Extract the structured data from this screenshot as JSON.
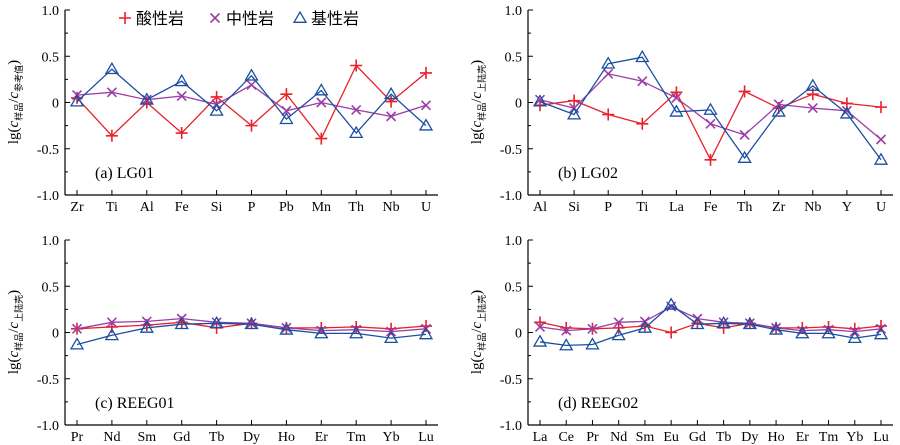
{
  "legend": [
    {
      "label": "酸性岩",
      "color": "#e8212a",
      "marker": "plus"
    },
    {
      "label": "中性岩",
      "color": "#9b3fa6",
      "marker": "cross"
    },
    {
      "label": "基性岩",
      "color": "#1a4fa0",
      "marker": "triangle"
    }
  ],
  "chart_data": [
    {
      "type": "line",
      "panel_label": "(a) LG01",
      "ylabel": "lg(c样品/c参考值)",
      "ylabel_base": "lg(",
      "ylabel_num": "样品",
      "ylabel_den": "参考值",
      "ylim": [
        -1.0,
        1.0
      ],
      "yticks": [
        "1.0",
        "0.5",
        "0",
        "-0.5",
        "-1.0"
      ],
      "categories": [
        "Zr",
        "Ti",
        "Al",
        "Fe",
        "Si",
        "P",
        "Pb",
        "Mn",
        "Th",
        "Nb",
        "U"
      ],
      "series": [
        {
          "name": "酸性岩",
          "values": [
            0.05,
            -0.36,
            0.0,
            -0.33,
            0.06,
            -0.25,
            0.09,
            -0.39,
            0.4,
            0.01,
            0.32
          ]
        },
        {
          "name": "中性岩",
          "values": [
            0.08,
            0.11,
            0.03,
            0.07,
            -0.02,
            0.19,
            -0.09,
            0.0,
            -0.08,
            -0.15,
            -0.03
          ]
        },
        {
          "name": "基性岩",
          "values": [
            0.01,
            0.36,
            0.03,
            0.23,
            -0.09,
            0.29,
            -0.18,
            0.13,
            -0.33,
            0.09,
            -0.25
          ]
        }
      ]
    },
    {
      "type": "line",
      "panel_label": "(b) LG02",
      "ylabel": "lg(c样品/c上陆壳)",
      "ylabel_base": "lg(",
      "ylabel_num": "样品",
      "ylabel_den": "上陆壳",
      "ylim": [
        -1.0,
        1.0
      ],
      "yticks": [
        "1.0",
        "0.5",
        "0",
        "-0.5",
        "-1.0"
      ],
      "categories": [
        "Al",
        "Si",
        "P",
        "Ti",
        "La",
        "Fe",
        "Th",
        "Zr",
        "Nb",
        "Y",
        "U"
      ],
      "series": [
        {
          "name": "酸性岩",
          "values": [
            -0.03,
            0.02,
            -0.13,
            -0.23,
            0.11,
            -0.62,
            0.12,
            -0.06,
            0.09,
            -0.01,
            -0.05
          ]
        },
        {
          "name": "中性岩",
          "values": [
            0.03,
            -0.06,
            0.31,
            0.23,
            0.05,
            -0.23,
            -0.35,
            -0.02,
            -0.06,
            -0.09,
            -0.4
          ]
        },
        {
          "name": "基性岩",
          "values": [
            0.01,
            -0.13,
            0.42,
            0.49,
            -0.1,
            -0.08,
            -0.6,
            -0.1,
            0.18,
            -0.12,
            -0.62
          ]
        }
      ]
    },
    {
      "type": "line",
      "panel_label": "(c) REEG01",
      "ylabel": "lg(c样品/c上陆壳)",
      "ylabel_base": "lg(",
      "ylabel_num": "样品",
      "ylabel_den": "上陆壳",
      "ylim": [
        -1.0,
        1.0
      ],
      "yticks": [
        "1.0",
        "0.5",
        "0",
        "-0.5",
        "-1.0"
      ],
      "categories": [
        "Pr",
        "Nd",
        "Sm",
        "Gd",
        "Tb",
        "Dy",
        "Ho",
        "Er",
        "Tm",
        "Yb",
        "Lu"
      ],
      "series": [
        {
          "name": "酸性岩",
          "values": [
            0.04,
            0.06,
            0.08,
            0.11,
            0.05,
            0.1,
            0.05,
            0.05,
            0.06,
            0.04,
            0.07
          ]
        },
        {
          "name": "中性岩",
          "values": [
            0.04,
            0.11,
            0.12,
            0.15,
            0.11,
            0.1,
            0.05,
            0.02,
            0.03,
            0.01,
            0.04
          ]
        },
        {
          "name": "基性岩",
          "values": [
            -0.13,
            -0.03,
            0.05,
            0.09,
            0.1,
            0.09,
            0.03,
            -0.01,
            -0.01,
            -0.06,
            -0.02
          ]
        }
      ]
    },
    {
      "type": "line",
      "panel_label": "(d) REEG02",
      "ylabel": "lg(c样品/c上陆壳)",
      "ylabel_base": "lg(",
      "ylabel_num": "样品",
      "ylabel_den": "上陆壳",
      "ylim": [
        -1.0,
        1.0
      ],
      "yticks": [
        "1.0",
        "0.5",
        "0",
        "-0.5",
        "-1.0"
      ],
      "categories": [
        "La",
        "Ce",
        "Pr",
        "Nd",
        "Sm",
        "Eu",
        "Gd",
        "Tb",
        "Dy",
        "Ho",
        "Er",
        "Tm",
        "Yb",
        "Lu"
      ],
      "series": [
        {
          "name": "酸性岩",
          "values": [
            0.11,
            0.05,
            0.04,
            0.05,
            0.07,
            0.0,
            0.1,
            0.05,
            0.1,
            0.05,
            0.05,
            0.06,
            0.04,
            0.07
          ]
        },
        {
          "name": "中性岩",
          "values": [
            0.06,
            0.02,
            0.04,
            0.11,
            0.12,
            0.28,
            0.15,
            0.11,
            0.1,
            0.05,
            0.02,
            0.03,
            0.01,
            0.04
          ]
        },
        {
          "name": "基性岩",
          "values": [
            -0.1,
            -0.14,
            -0.13,
            -0.03,
            0.05,
            0.3,
            0.09,
            0.1,
            0.09,
            0.03,
            -0.01,
            -0.01,
            -0.06,
            -0.02
          ]
        }
      ]
    }
  ]
}
